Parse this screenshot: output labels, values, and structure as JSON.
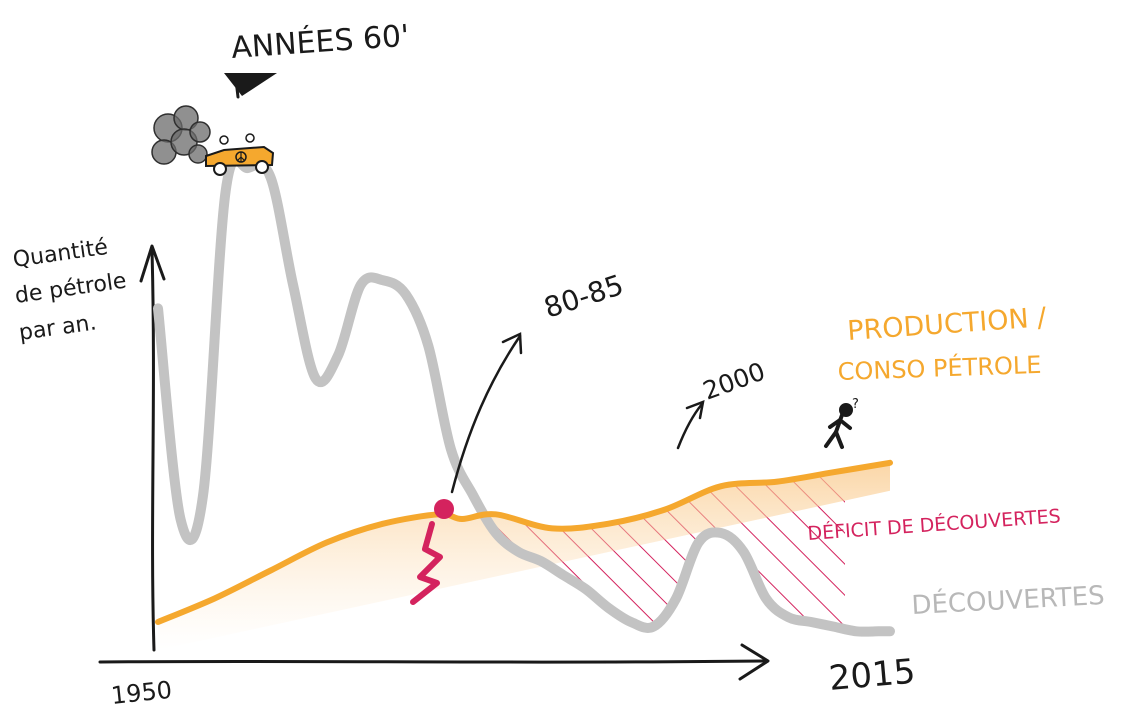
{
  "chart_data": {
    "type": "line",
    "ylabel": "Quantité de pétrole par an.",
    "x_start_label": "1950",
    "x_end_label": "2015",
    "annotations": {
      "sixties": "ANNÉES 60'",
      "eighties": "80-85",
      "y2000": "2000",
      "deficit": "DÉFICIT DE DÉCOUVERTES"
    },
    "series": [
      {
        "name": "DÉCOUVERTES",
        "color": "#c3c3c3",
        "x": [
          1950,
          1952,
          1954,
          1956,
          1958,
          1960,
          1962,
          1964,
          1966,
          1968,
          1970,
          1972,
          1974,
          1976,
          1978,
          1980,
          1982,
          1984,
          1986,
          1988,
          1990,
          1992,
          1994,
          1996,
          1998,
          2000,
          2002,
          2004,
          2006,
          2008,
          2010,
          2012,
          2014,
          2015
        ],
        "y": [
          70,
          25,
          30,
          95,
          100,
          98,
          75,
          55,
          60,
          75,
          76,
          73,
          62,
          40,
          30,
          22,
          18,
          16,
          13,
          10,
          6,
          3,
          2,
          8,
          20,
          22,
          18,
          8,
          4,
          3,
          2,
          1,
          1,
          1
        ]
      },
      {
        "name": "PRODUCTION / CONSO PÉTROLE",
        "color": "#f5a82e",
        "x": [
          1950,
          1955,
          1960,
          1965,
          1970,
          1975,
          1977,
          1980,
          1985,
          1990,
          1995,
          2000,
          2005,
          2010,
          2015
        ],
        "y": [
          3,
          8,
          14,
          20,
          24,
          26,
          25,
          26,
          23,
          24,
          27,
          32,
          33,
          35,
          37
        ]
      }
    ]
  }
}
